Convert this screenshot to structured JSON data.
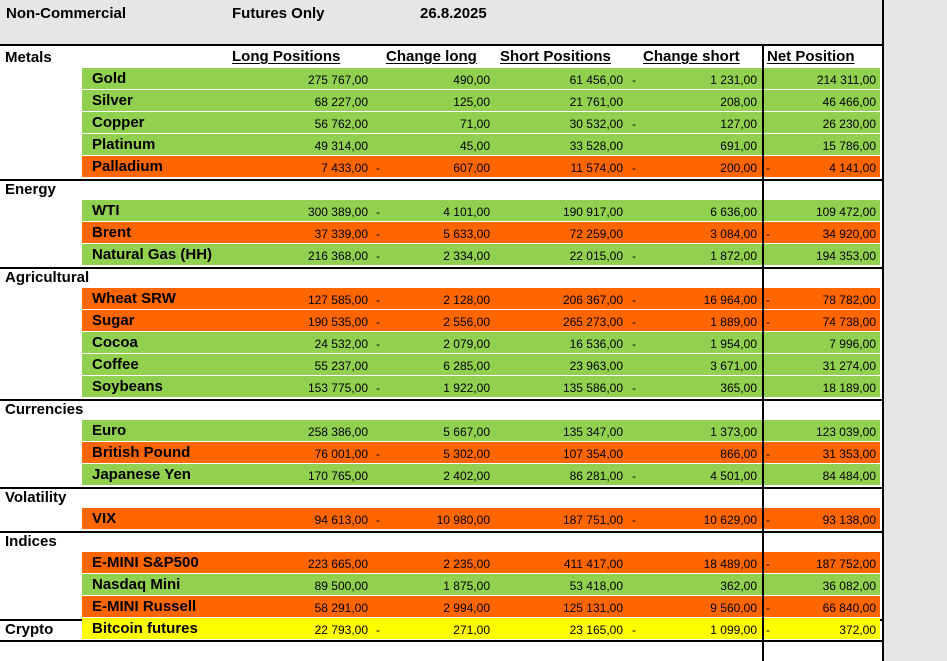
{
  "header": {
    "title": "Non-Commercial",
    "report_type": "Futures Only",
    "date": "26.8.2025"
  },
  "columns": {
    "long": "Long Positions",
    "change_long": "Change long",
    "short": "Short Positions",
    "change_short": "Change short",
    "net": "Net Position"
  },
  "colors": {
    "positive": "#92d050",
    "negative": "#ff6600",
    "crypto": "#ffff00",
    "header_bg": "#e6e6e6"
  },
  "sections": [
    {
      "name": "Metals",
      "rows": [
        {
          "name": "Gold",
          "color": "green",
          "long": "275 767,00",
          "dl": "",
          "change_long": "490,00",
          "short": "61 456,00",
          "ds": "-",
          "change_short": "1 231,00",
          "dn": "",
          "net": "214 311,00"
        },
        {
          "name": "Silver",
          "color": "green",
          "long": "68 227,00",
          "dl": "",
          "change_long": "125,00",
          "short": "21 761,00",
          "ds": "",
          "change_short": "208,00",
          "dn": "",
          "net": "46 466,00"
        },
        {
          "name": "Copper",
          "color": "green",
          "long": "56 762,00",
          "dl": "",
          "change_long": "71,00",
          "short": "30 532,00",
          "ds": "-",
          "change_short": "127,00",
          "dn": "",
          "net": "26 230,00"
        },
        {
          "name": "Platinum",
          "color": "green",
          "long": "49 314,00",
          "dl": "",
          "change_long": "45,00",
          "short": "33 528,00",
          "ds": "",
          "change_short": "691,00",
          "dn": "",
          "net": "15 786,00"
        },
        {
          "name": "Palladium",
          "color": "orange",
          "long": "7 433,00",
          "dl": "-",
          "change_long": "607,00",
          "short": "11 574,00",
          "ds": "-",
          "change_short": "200,00",
          "dn": "-",
          "net": "4 141,00"
        }
      ]
    },
    {
      "name": "Energy",
      "rows": [
        {
          "name": "WTI",
          "color": "green",
          "long": "300 389,00",
          "dl": "-",
          "change_long": "4 101,00",
          "short": "190 917,00",
          "ds": "",
          "change_short": "6 636,00",
          "dn": "",
          "net": "109 472,00"
        },
        {
          "name": "Brent",
          "color": "orange",
          "long": "37 339,00",
          "dl": "-",
          "change_long": "5 633,00",
          "short": "72 259,00",
          "ds": "",
          "change_short": "3 084,00",
          "dn": "-",
          "net": "34 920,00"
        },
        {
          "name": "Natural Gas (HH)",
          "color": "green",
          "long": "216 368,00",
          "dl": "-",
          "change_long": "2 334,00",
          "short": "22 015,00",
          "ds": "-",
          "change_short": "1 872,00",
          "dn": "",
          "net": "194 353,00"
        }
      ]
    },
    {
      "name": "Agricultural",
      "rows": [
        {
          "name": "Wheat SRW",
          "color": "orange",
          "long": "127 585,00",
          "dl": "-",
          "change_long": "2 128,00",
          "short": "206 367,00",
          "ds": "-",
          "change_short": "16 964,00",
          "dn": "-",
          "net": "78 782,00"
        },
        {
          "name": "Sugar",
          "color": "orange",
          "long": "190 535,00",
          "dl": "-",
          "change_long": "2 556,00",
          "short": "265 273,00",
          "ds": "-",
          "change_short": "1 889,00",
          "dn": "-",
          "net": "74 738,00"
        },
        {
          "name": "Cocoa",
          "color": "green",
          "long": "24 532,00",
          "dl": "-",
          "change_long": "2 079,00",
          "short": "16 536,00",
          "ds": "-",
          "change_short": "1 954,00",
          "dn": "",
          "net": "7 996,00"
        },
        {
          "name": "Coffee",
          "color": "green",
          "long": "55 237,00",
          "dl": "",
          "change_long": "6 285,00",
          "short": "23 963,00",
          "ds": "",
          "change_short": "3 671,00",
          "dn": "",
          "net": "31 274,00"
        },
        {
          "name": "Soybeans",
          "color": "green",
          "long": "153 775,00",
          "dl": "-",
          "change_long": "1 922,00",
          "short": "135 586,00",
          "ds": "-",
          "change_short": "365,00",
          "dn": "",
          "net": "18 189,00"
        }
      ]
    },
    {
      "name": "Currencies",
      "rows": [
        {
          "name": "Euro",
          "color": "green",
          "long": "258 386,00",
          "dl": "",
          "change_long": "5 667,00",
          "short": "135 347,00",
          "ds": "",
          "change_short": "1 373,00",
          "dn": "",
          "net": "123 039,00"
        },
        {
          "name": "British Pound",
          "color": "orange",
          "long": "76 001,00",
          "dl": "-",
          "change_long": "5 302,00",
          "short": "107 354,00",
          "ds": "",
          "change_short": "866,00",
          "dn": "-",
          "net": "31 353,00"
        },
        {
          "name": "Japanese Yen",
          "color": "green",
          "long": "170 765,00",
          "dl": "",
          "change_long": "2 402,00",
          "short": "86 281,00",
          "ds": "-",
          "change_short": "4 501,00",
          "dn": "",
          "net": "84 484,00"
        }
      ]
    },
    {
      "name": "Volatility",
      "rows": [
        {
          "name": "VIX",
          "color": "orange",
          "long": "94 613,00",
          "dl": "-",
          "change_long": "10 980,00",
          "short": "187 751,00",
          "ds": "-",
          "change_short": "10 629,00",
          "dn": "-",
          "net": "93 138,00"
        }
      ]
    },
    {
      "name": "Indices",
      "rows": [
        {
          "name": "E-MINI S&P500",
          "color": "orange",
          "long": "223 665,00",
          "dl": "",
          "change_long": "2 235,00",
          "short": "411 417,00",
          "ds": "",
          "change_short": "18 489,00",
          "dn": "-",
          "net": "187 752,00"
        },
        {
          "name": "Nasdaq Mini",
          "color": "green",
          "long": "89 500,00",
          "dl": "",
          "change_long": "1 875,00",
          "short": "53 418,00",
          "ds": "",
          "change_short": "362,00",
          "dn": "",
          "net": "36 082,00"
        },
        {
          "name": "E-MINI Russell",
          "color": "orange",
          "long": "58 291,00",
          "dl": "",
          "change_long": "2 994,00",
          "short": "125 131,00",
          "ds": "",
          "change_short": "9 560,00",
          "dn": "-",
          "net": "66 840,00"
        }
      ]
    },
    {
      "name": "Crypto",
      "rows": [
        {
          "name": "Bitcoin futures",
          "color": "yellow",
          "long": "22 793,00",
          "dl": "-",
          "change_long": "271,00",
          "short": "23 165,00",
          "ds": "-",
          "change_short": "1 099,00",
          "dn": "-",
          "net": "372,00"
        }
      ]
    }
  ]
}
